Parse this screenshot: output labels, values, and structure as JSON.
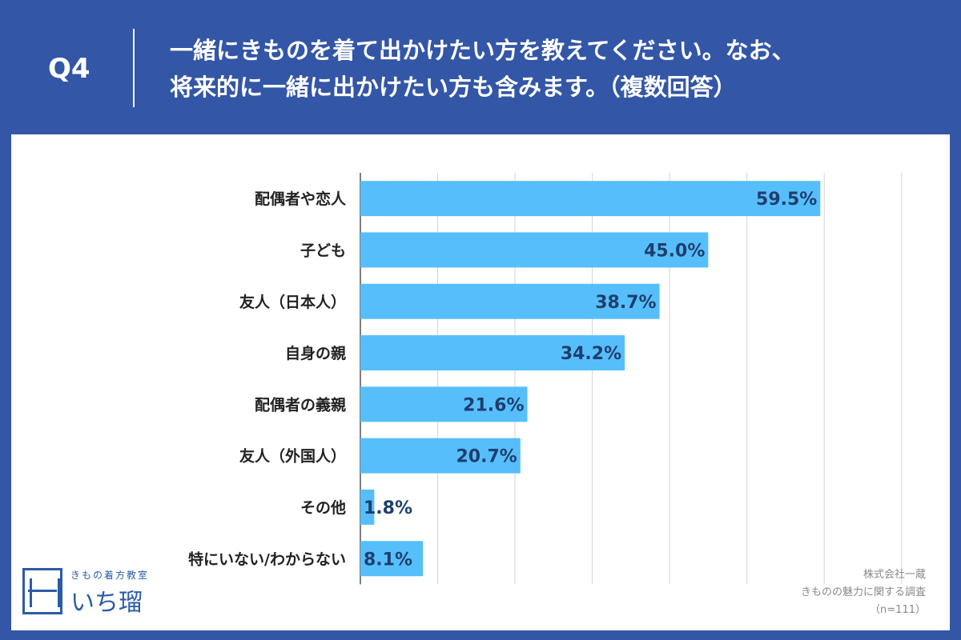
{
  "header": {
    "q_label": "Q4",
    "question_line1": "一緒にきものを着て出かけたい方を教えてください。なお、",
    "question_line2": "将来的に一緒に出かけたい方も含みます。（複数回答）"
  },
  "colors": {
    "header_bg": "#3356a6",
    "bar": "#56bffb",
    "value_text": "#1f3e6e",
    "grid": "#d4d4d4"
  },
  "chart_data": {
    "type": "bar",
    "orientation": "horizontal",
    "title": "一緒にきものを着て出かけたい方を教えてください。なお、将来的に一緒に出かけたい方も含みます。（複数回答）",
    "categories": [
      "配偶者や恋人",
      "子ども",
      "友人（日本人）",
      "自身の親",
      "配偶者の義親",
      "友人（外国人）",
      "その他",
      "特にいない/わからない"
    ],
    "values": [
      59.5,
      45.0,
      38.7,
      34.2,
      21.6,
      20.7,
      1.8,
      8.1
    ],
    "value_labels": [
      "59.5%",
      "45.0%",
      "38.7%",
      "34.2%",
      "21.6%",
      "20.7%",
      "1.8%",
      "8.1%"
    ],
    "unit": "%",
    "xlim": [
      0,
      75
    ],
    "grid": true,
    "xlabel": "",
    "ylabel": ""
  },
  "logo": {
    "subtitle": "きもの着方教室",
    "name": "いち瑠"
  },
  "source": {
    "company": "株式会社一蔵",
    "survey": "きものの魅力に関する調査",
    "sample": "（n=111）"
  }
}
